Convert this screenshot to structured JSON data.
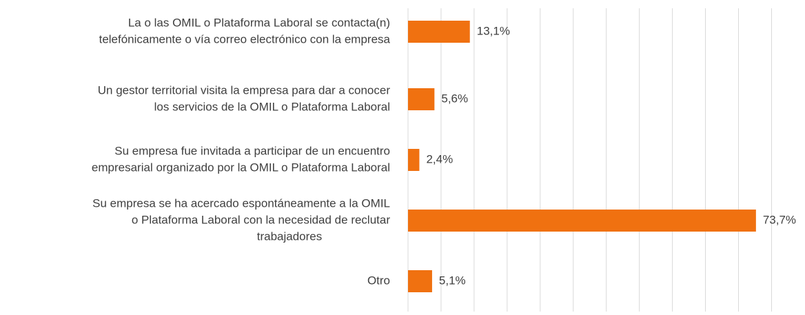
{
  "chart_data": {
    "type": "bar",
    "orientation": "horizontal",
    "categories": [
      [
        "La o las OMIL o Plataforma Laboral se contacta(n)",
        "telefónicamente o vía correo electrónico con la empresa"
      ],
      [
        "Un gestor territorial visita la empresa para dar a conocer",
        "los servicios de la OMIL o Plataforma Laboral"
      ],
      [
        "Su empresa fue invitada a participar de un encuentro",
        "empresarial organizado por la OMIL o Plataforma Laboral"
      ],
      [
        "Su empresa se ha acercado espontáneamente a la OMIL",
        "o Plataforma Laboral con la necesidad de reclutar",
        "trabajadores"
      ],
      [
        "Otro"
      ]
    ],
    "values": [
      13.1,
      5.6,
      2.4,
      73.7,
      5.1
    ],
    "value_labels": [
      "13,1%",
      "5,6%",
      "2,4%",
      "73,7%",
      "5,1%"
    ],
    "color": "#f07110",
    "xlim": [
      0,
      77
    ],
    "xticks": [
      0,
      7,
      14,
      21,
      28,
      35,
      42,
      49,
      56,
      63,
      70,
      77
    ],
    "grid": true
  }
}
